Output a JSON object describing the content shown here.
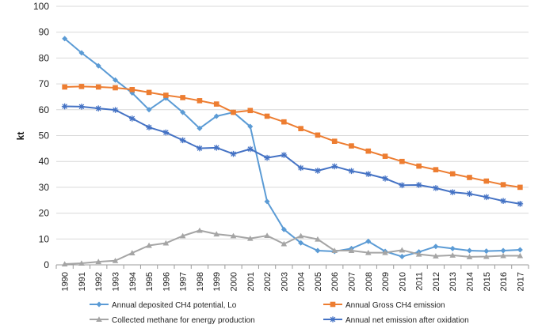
{
  "chart_data": {
    "type": "line",
    "title": "",
    "xlabel": "",
    "ylabel": "kt",
    "ylim": [
      0,
      100
    ],
    "yticks": [
      0,
      10,
      20,
      30,
      40,
      50,
      60,
      70,
      80,
      90,
      100
    ],
    "grid": "horizontal",
    "legend_position": "bottom",
    "x": [
      "1990",
      "1991",
      "1992",
      "1993",
      "1994",
      "1995",
      "1996",
      "1997",
      "1998",
      "1999",
      "2000",
      "2001",
      "2002",
      "2003",
      "2004",
      "2005",
      "2006",
      "2007",
      "2008",
      "2009",
      "2010",
      "2011",
      "2012",
      "2013",
      "2014",
      "2015",
      "2016",
      "2017"
    ],
    "series": [
      {
        "name": "Annual deposited CH4 potential, Lo",
        "color": "#5b9bd5",
        "marker": "diamond",
        "values": [
          87.5,
          82,
          77,
          71.5,
          66.5,
          60,
          64.5,
          59,
          52.8,
          57.5,
          59,
          53.5,
          24.5,
          13.7,
          8.5,
          5.5,
          5.2,
          6.3,
          9.1,
          5.2,
          3.2,
          5,
          7.1,
          6.3,
          5.5,
          5.3,
          5.5,
          5.8
        ]
      },
      {
        "name": "Annual Gross CH4 emission",
        "color": "#ed7d31",
        "marker": "square",
        "values": [
          68.8,
          69,
          68.8,
          68.5,
          67.8,
          66.7,
          65.6,
          64.7,
          63.5,
          62.2,
          59,
          59.7,
          57.5,
          55.3,
          52.7,
          50.2,
          47.8,
          46,
          44,
          42,
          40,
          38.2,
          36.8,
          35.2,
          33.8,
          32.4,
          31,
          30
        ]
      },
      {
        "name": "Collected methane for energy production",
        "color": "#a5a5a5",
        "marker": "triangle",
        "values": [
          0.3,
          0.6,
          1.2,
          1.6,
          4.6,
          7.5,
          8.4,
          11.2,
          13.3,
          11.9,
          11.2,
          10.2,
          11.3,
          8.1,
          11.2,
          9.9,
          5.5,
          5.5,
          4.7,
          4.7,
          5.7,
          4.1,
          3.4,
          3.7,
          3.1,
          3.2,
          3.5,
          3.5
        ]
      },
      {
        "name": "Annual net emission after oxidation",
        "color": "#4472c4",
        "marker": "star",
        "values": [
          61.3,
          61.2,
          60.5,
          59.9,
          56.6,
          53.2,
          51.2,
          48.2,
          45.1,
          45.3,
          42.9,
          44.8,
          41.4,
          42.5,
          37.5,
          36.4,
          38.1,
          36.3,
          35.1,
          33.4,
          30.8,
          30.9,
          29.7,
          28.1,
          27.5,
          26.2,
          24.7,
          23.6
        ]
      }
    ]
  }
}
